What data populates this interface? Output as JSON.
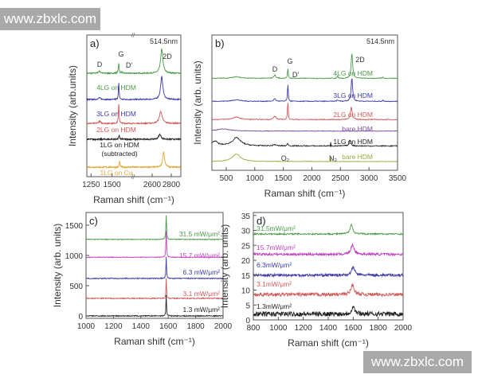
{
  "watermarks": [
    "www.zbxlc.com",
    "www.zbxlc.com"
  ],
  "chart_data": [
    {
      "panel": "a)",
      "type": "line",
      "laser_label": "514.5nm",
      "xlabel": "Raman shift (cm⁻¹)",
      "ylabel": "Intensity (arb.units)",
      "xlim_segments": [
        [
          1200,
          1750
        ],
        [
          2400,
          2900
        ]
      ],
      "xticks": [
        1250,
        1500,
        2600,
        2800
      ],
      "ylim": [
        0,
        10
      ],
      "peak_labels": [
        "D",
        "G",
        "D'",
        "2D"
      ],
      "series": [
        {
          "name": "4LG on HDM",
          "color": "#4a9a4a",
          "offset": 7.3,
          "noise": 0.04,
          "peaks": [
            [
              1350,
              0.15,
              30
            ],
            [
              1580,
              0.7,
              12
            ],
            [
              1620,
              0.1,
              10
            ],
            [
              2700,
              1.7,
              28
            ]
          ]
        },
        {
          "name": "3LG on HDM",
          "color": "#3a3aa8",
          "offset": 5.45,
          "noise": 0.04,
          "peaks": [
            [
              1350,
              0.12,
              30
            ],
            [
              1580,
              1.2,
              10
            ],
            [
              2700,
              1.6,
              28
            ]
          ]
        },
        {
          "name": "2LG on HDM",
          "color": "#d05858",
          "offset": 3.76,
          "noise": 0.04,
          "peaks": [
            [
              1350,
              0.15,
              30
            ],
            [
              1580,
              1.4,
              10
            ],
            [
              2690,
              0.85,
              35
            ]
          ]
        },
        {
          "name": "1LG on HDM",
          "name2": "(subtracted)",
          "color": "#222222",
          "offset": 2.64,
          "noise": 0.05,
          "peaks": [
            [
              1585,
              0.25,
              15
            ],
            [
              2680,
              0.35,
              30
            ]
          ]
        },
        {
          "name": "1LG on Cu",
          "color": "#e0a838",
          "offset": 0.67,
          "noise": 0.05,
          "peaks": [
            [
              1590,
              0.45,
              10
            ],
            [
              2720,
              1.1,
              22
            ]
          ]
        }
      ]
    },
    {
      "panel": "b)",
      "type": "line",
      "laser_label": "514.5nm",
      "xlabel": "Raman shift (cm⁻¹)",
      "ylabel": "Intensity (arb. units)",
      "xlim": [
        250,
        3500
      ],
      "xticks": [
        500,
        1000,
        1500,
        2000,
        2500,
        3000,
        3500
      ],
      "ylim": [
        0,
        10
      ],
      "peak_labels": [
        "D",
        "G",
        "D'",
        "2D",
        "O₂",
        "N₂"
      ],
      "series": [
        {
          "name": "4LG on HDM",
          "color": "#4a9a4a",
          "offset": 6.8,
          "noise": 0.03,
          "peaks": [
            [
              680,
              0.12,
              150
            ],
            [
              1350,
              0.25,
              40
            ],
            [
              1580,
              0.75,
              15
            ],
            [
              2450,
              0.15,
              25
            ],
            [
              2700,
              1.9,
              30
            ],
            [
              3240,
              0.08,
              20
            ]
          ]
        },
        {
          "name": "3LG on HDM",
          "color": "#3a3aa8",
          "offset": 5.1,
          "noise": 0.03,
          "peaks": [
            [
              680,
              0.12,
              150
            ],
            [
              1350,
              0.2,
              40
            ],
            [
              1580,
              1.3,
              15
            ],
            [
              2450,
              0.1,
              25
            ],
            [
              2700,
              1.75,
              30
            ],
            [
              3240,
              0.08,
              20
            ]
          ]
        },
        {
          "name": "2LG on HDM",
          "color": "#d05858",
          "offset": 3.75,
          "noise": 0.03,
          "peaks": [
            [
              680,
              0.18,
              150
            ],
            [
              1350,
              0.25,
              50
            ],
            [
              1580,
              1.35,
              15
            ],
            [
              2690,
              0.95,
              35
            ]
          ]
        },
        {
          "name": "bare HDM",
          "color": "#7a4a9a",
          "offset": 2.9,
          "noise": 0.02,
          "peaks": [
            [
              450,
              0.15,
              300
            ]
          ]
        },
        {
          "name": "1LG on HDM",
          "color": "#222222",
          "offset": 1.8,
          "noise": 0.04,
          "peaks": [
            [
              300,
              0.35,
              120
            ],
            [
              680,
              0.6,
              180
            ],
            [
              1350,
              0.1,
              50
            ],
            [
              1580,
              0.2,
              20
            ],
            [
              2330,
              0.3,
              3
            ],
            [
              2670,
              0.45,
              35
            ]
          ]
        },
        {
          "name": "bare HDM",
          "color": "#9aaa40",
          "offset": 0.65,
          "noise": 0.02,
          "peaks": [
            [
              680,
              0.55,
              170
            ],
            [
              2330,
              0.3,
              3
            ]
          ]
        }
      ]
    },
    {
      "panel": "c)",
      "type": "line",
      "xlabel": "Raman shift (cm⁻¹)",
      "ylabel": "Intensity (arb. units)",
      "xlim": [
        1000,
        2000
      ],
      "xticks": [
        1000,
        1200,
        1400,
        1600,
        1800,
        2000
      ],
      "ylim": [
        -40,
        1710
      ],
      "yticks": [
        0,
        500,
        1000,
        1500
      ],
      "series": [
        {
          "name": "31.5 mW/μm²",
          "color": "#4a9a4a",
          "offset": 1265,
          "noise": 6,
          "peaks": [
            [
              1585,
              400,
              6
            ]
          ]
        },
        {
          "name": "15.7 mW/μm²",
          "color": "#c040c0",
          "offset": 970,
          "noise": 6,
          "peaks": [
            [
              1585,
              430,
              6
            ]
          ]
        },
        {
          "name": "6.3 mW/μm²",
          "color": "#3a3aa8",
          "offset": 620,
          "noise": 8,
          "peaks": [
            [
              1585,
              350,
              5
            ]
          ]
        },
        {
          "name": "3.1 mW/μm²",
          "color": "#d05858",
          "offset": 290,
          "noise": 8,
          "peaks": [
            [
              1585,
              330,
              5
            ]
          ]
        },
        {
          "name": "1.3 mW/μm²",
          "color": "#222222",
          "offset": 0,
          "noise": 8,
          "peaks": [
            [
              1585,
              350,
              5
            ]
          ]
        }
      ]
    },
    {
      "panel": "d)",
      "type": "line",
      "xlabel": "Raman shift (cm⁻¹)",
      "ylabel": "Intensity (arb. units)",
      "xlim": [
        800,
        2000
      ],
      "xticks": [
        800,
        1000,
        1200,
        1400,
        1600,
        1800,
        2000
      ],
      "ylim": [
        0,
        36
      ],
      "yticks": [
        0,
        5,
        10,
        15,
        20,
        25,
        30,
        35
      ],
      "series": [
        {
          "name": "31.5mW/μm²",
          "color": "#4a9a4a",
          "offset": 28.8,
          "noise": 0.25,
          "peaks": [
            [
              1585,
              3.2,
              25
            ]
          ]
        },
        {
          "name": "15.7mW/μm²",
          "color": "#c040c0",
          "offset": 22,
          "noise": 0.4,
          "peaks": [
            [
              1595,
              3.2,
              30
            ]
          ]
        },
        {
          "name": "6.3mW/μm²",
          "color": "#3a3aa8",
          "offset": 15,
          "noise": 0.45,
          "peaks": [
            [
              1600,
              2.7,
              30
            ]
          ]
        },
        {
          "name": "3.1mW/μm²",
          "color": "#d05858",
          "offset": 8.5,
          "noise": 0.6,
          "peaks": [
            [
              1595,
              3.2,
              30
            ]
          ]
        },
        {
          "name": "1.3mW/μm²",
          "color": "#222222",
          "offset": 2,
          "noise": 0.8,
          "peaks": [
            [
              1600,
              2.5,
              30
            ]
          ]
        }
      ]
    }
  ]
}
